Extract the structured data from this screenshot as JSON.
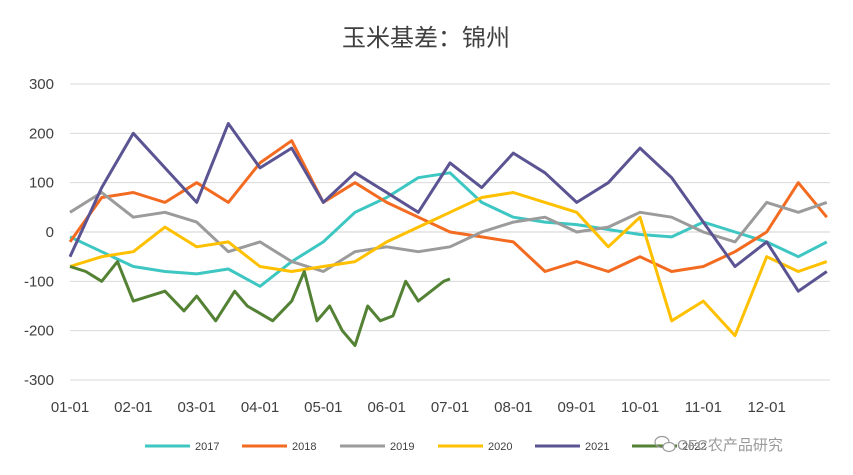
{
  "chart_data": {
    "type": "line",
    "title": "玉米基差：锦州",
    "xlabel": "",
    "ylabel": "",
    "ylim": [
      -300,
      300
    ],
    "yticks": [
      300,
      200,
      100,
      0,
      -100,
      -200,
      -300
    ],
    "ytick_labels": [
      "300",
      "200",
      "100",
      "0",
      "-100",
      "-200",
      "-300"
    ],
    "xticks": [
      "01-01",
      "02-01",
      "03-01",
      "04-01",
      "05-01",
      "06-01",
      "07-01",
      "08-01",
      "09-01",
      "10-01",
      "11-01",
      "12-01"
    ],
    "grid": "horizontal",
    "legend": "bottom",
    "series": [
      {
        "name": "2017",
        "color": "#3ec7c2",
        "x": [
          0,
          0.5,
          1,
          1.5,
          2,
          2.5,
          3,
          3.5,
          4,
          4.5,
          5,
          5.5,
          6,
          6.5,
          7,
          7.5,
          8,
          8.5,
          9,
          9.5,
          10,
          10.5,
          11,
          11.5,
          11.95
        ],
        "values": [
          -10,
          -40,
          -70,
          -80,
          -85,
          -75,
          -110,
          -60,
          -20,
          40,
          70,
          110,
          120,
          60,
          30,
          20,
          15,
          5,
          -5,
          -10,
          20,
          0,
          -20,
          -50,
          -20
        ]
      },
      {
        "name": "2018",
        "color": "#f36b21",
        "x": [
          0,
          0.5,
          1,
          1.5,
          2,
          2.5,
          3,
          3.5,
          4,
          4.5,
          5,
          5.5,
          6,
          6.5,
          7,
          7.5,
          8,
          8.5,
          9,
          9.5,
          10,
          10.5,
          11,
          11.5,
          11.95
        ],
        "values": [
          -20,
          70,
          80,
          60,
          100,
          60,
          140,
          185,
          60,
          100,
          60,
          30,
          0,
          -10,
          -20,
          -80,
          -60,
          -80,
          -50,
          -80,
          -70,
          -40,
          0,
          100,
          30
        ]
      },
      {
        "name": "2019",
        "color": "#9b9b9b",
        "x": [
          0,
          0.5,
          1,
          1.5,
          2,
          2.5,
          3,
          3.5,
          4,
          4.5,
          5,
          5.5,
          6,
          6.5,
          7,
          7.5,
          8,
          8.5,
          9,
          9.5,
          10,
          10.5,
          11,
          11.5,
          11.95
        ],
        "values": [
          40,
          80,
          30,
          40,
          20,
          -40,
          -20,
          -60,
          -80,
          -40,
          -30,
          -40,
          -30,
          0,
          20,
          30,
          0,
          10,
          40,
          30,
          0,
          -20,
          60,
          40,
          60
        ]
      },
      {
        "name": "2020",
        "color": "#ffc000",
        "x": [
          0,
          0.5,
          1,
          1.5,
          2,
          2.5,
          3,
          3.5,
          4,
          4.5,
          5,
          5.5,
          6,
          6.5,
          7,
          7.5,
          8,
          8.5,
          9,
          9.5,
          10,
          10.5,
          11,
          11.5,
          11.95
        ],
        "values": [
          -70,
          -50,
          -40,
          10,
          -30,
          -20,
          -70,
          -80,
          -70,
          -60,
          -20,
          10,
          40,
          70,
          80,
          60,
          40,
          -30,
          30,
          -180,
          -140,
          -210,
          -50,
          -80,
          -60
        ]
      },
      {
        "name": "2021",
        "color": "#5b5493",
        "x": [
          0,
          0.5,
          1,
          1.5,
          2,
          2.5,
          3,
          3.5,
          4,
          4.5,
          5,
          5.5,
          6,
          6.5,
          7,
          7.5,
          8,
          8.5,
          9,
          9.5,
          10,
          10.5,
          11,
          11.5,
          11.95
        ],
        "values": [
          -50,
          90,
          200,
          130,
          60,
          220,
          130,
          170,
          60,
          120,
          80,
          40,
          140,
          90,
          160,
          120,
          60,
          100,
          170,
          110,
          20,
          -70,
          -20,
          -120,
          -80
        ]
      },
      {
        "name": "2022",
        "color": "#548235",
        "x": [
          0,
          0.25,
          0.5,
          0.75,
          1,
          1.5,
          1.8,
          2,
          2.3,
          2.6,
          2.8,
          3.2,
          3.5,
          3.7,
          3.9,
          4.1,
          4.3,
          4.5,
          4.7,
          4.9,
          5.1,
          5.3,
          5.5,
          5.7,
          5.9,
          6.0
        ],
        "values": [
          -70,
          -80,
          -100,
          -60,
          -140,
          -120,
          -160,
          -130,
          -180,
          -120,
          -150,
          -180,
          -140,
          -80,
          -180,
          -150,
          -200,
          -230,
          -150,
          -180,
          -170,
          -100,
          -140,
          -120,
          -100,
          -95
        ]
      }
    ]
  },
  "watermark": "CFC农产品研究"
}
